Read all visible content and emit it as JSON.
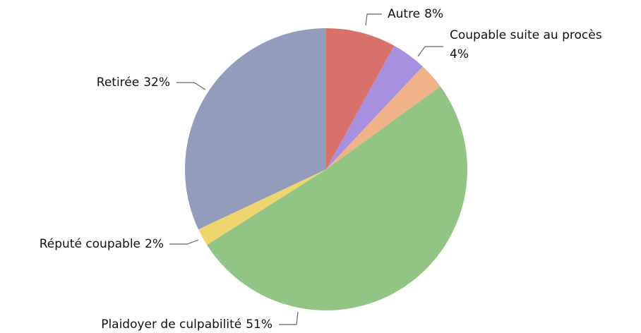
{
  "chart_data": {
    "type": "pie",
    "categories": [
      "Autre",
      "Coupable suite au procès",
      null,
      "Plaidoyer de culpabilité",
      "Réputé coupable",
      "Retirée"
    ],
    "values": [
      8,
      4,
      3,
      51,
      2,
      32
    ],
    "value_labels": [
      "8%",
      "4%",
      null,
      "51%",
      "2%",
      "32%"
    ],
    "colors": [
      "#d9716b",
      "#a690df",
      "#f0b388",
      "#92c584",
      "#efd56e",
      "#939cba"
    ]
  }
}
